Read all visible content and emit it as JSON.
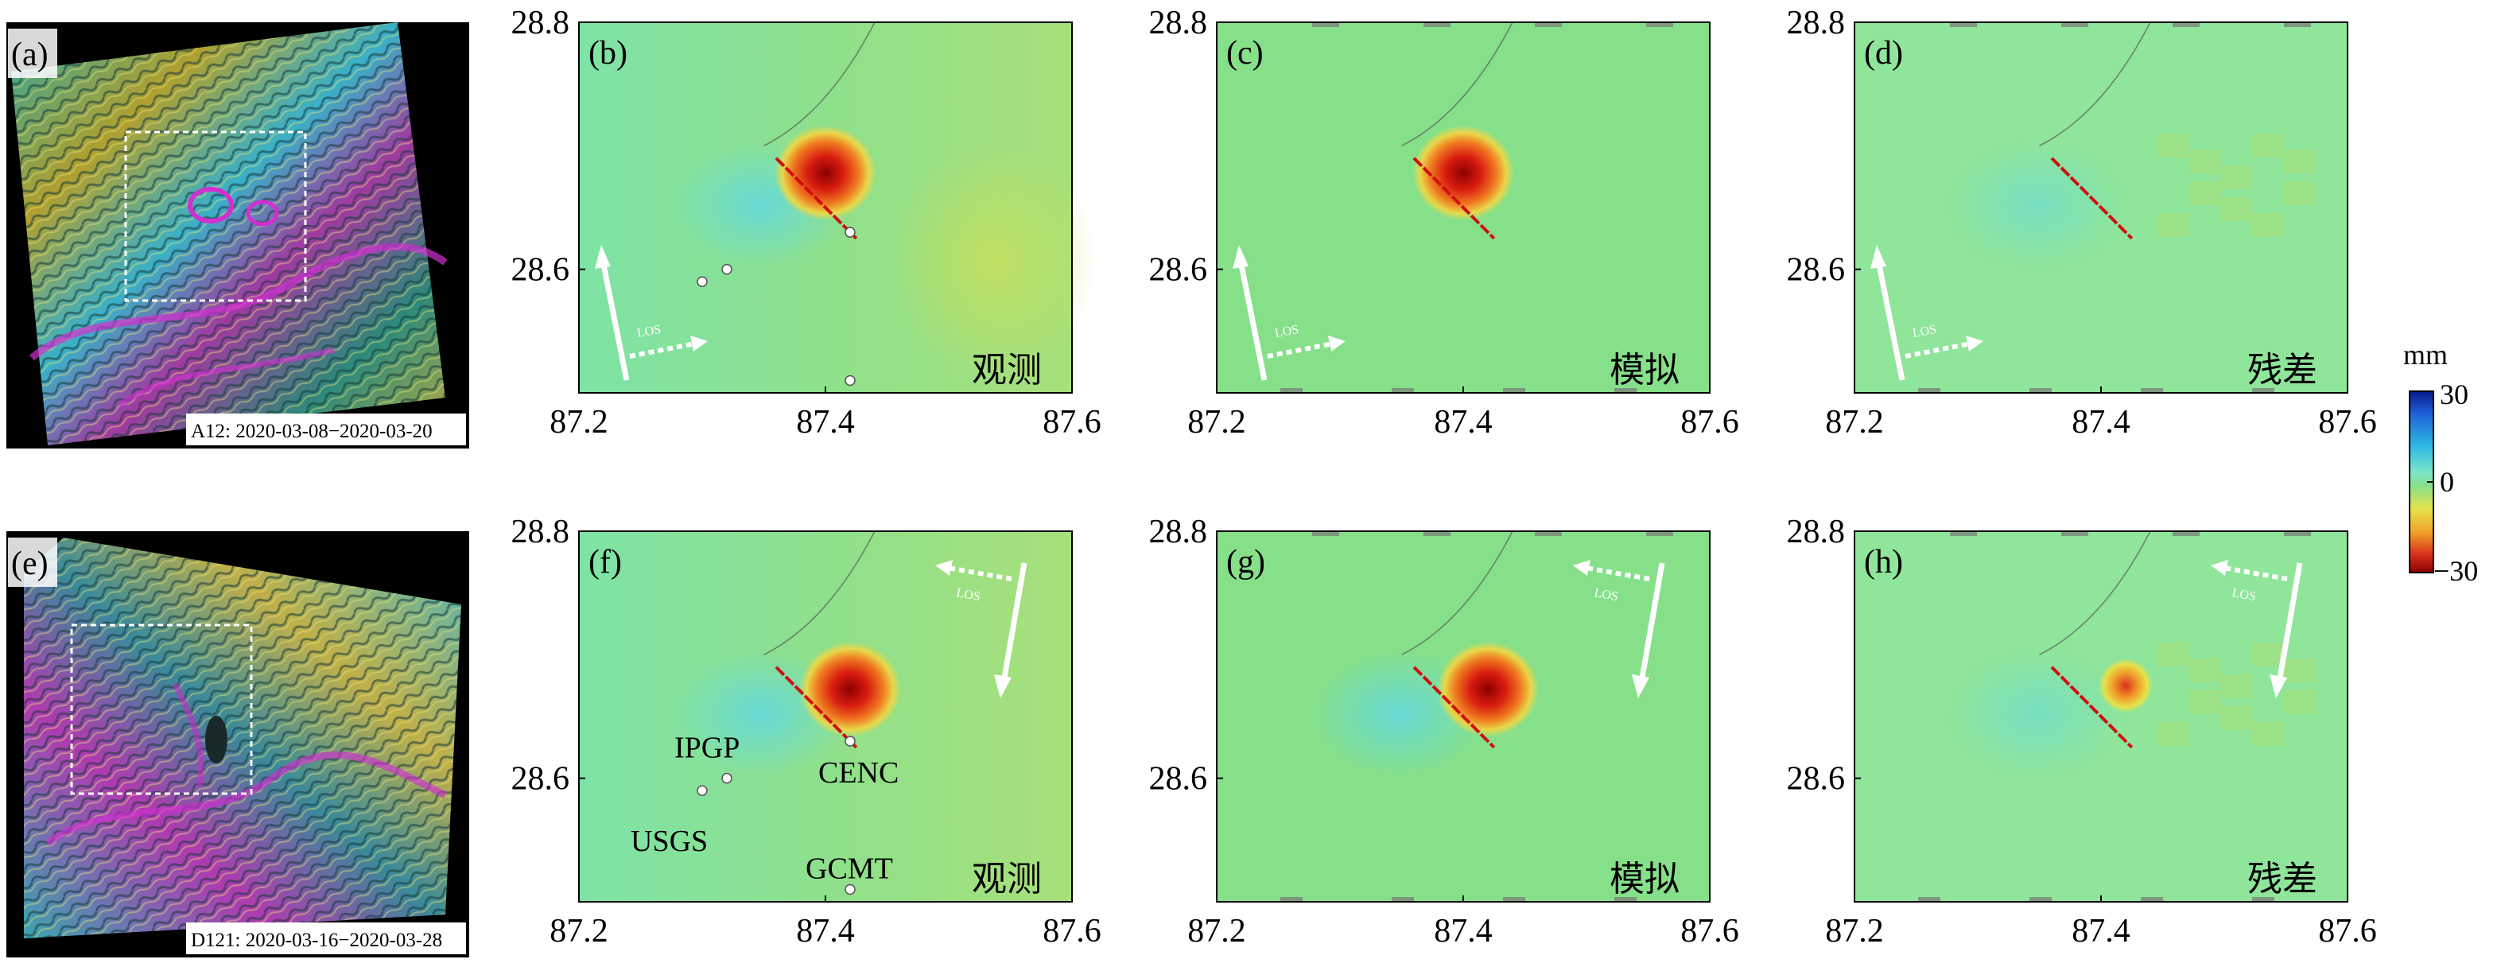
{
  "panels": [
    {
      "label": "(a)",
      "caption": "A12: 2020-03-08−2020-03-20"
    },
    {
      "label": "(b)",
      "tag": "观测"
    },
    {
      "label": "(c)",
      "tag": "模拟"
    },
    {
      "label": "(d)",
      "tag": "残差"
    },
    {
      "label": "(e)",
      "caption": "D121: 2020-03-16−2020-03-28"
    },
    {
      "label": "(f)",
      "tag": "观测"
    },
    {
      "label": "(g)",
      "tag": "模拟"
    },
    {
      "label": "(h)",
      "tag": "残差"
    }
  ],
  "axes": {
    "x_ticks": [
      "87.2",
      "87.4",
      "87.6"
    ],
    "y_ticks": [
      "28.8",
      "28.6"
    ],
    "xlim": [
      87.2,
      87.6
    ],
    "ylim": [
      28.5,
      28.8
    ]
  },
  "los_label": "LOS",
  "epicenters": [
    {
      "name": "IPGP",
      "lon": 87.32,
      "lat": 28.6
    },
    {
      "name": "USGS",
      "lon": 87.3,
      "lat": 28.59
    },
    {
      "name": "CENC",
      "lon": 87.42,
      "lat": 28.63
    },
    {
      "name": "GCMT",
      "lon": 87.42,
      "lat": 28.51
    }
  ],
  "colorbar": {
    "unit": "mm",
    "max_label": "30",
    "mid_label": "0",
    "min_label": "−30",
    "colors": [
      "#0a1a8c",
      "#1f5fd6",
      "#2fb7e6",
      "#7be6c8",
      "#86e08a",
      "#e6e24a",
      "#f0a02a",
      "#d8301c",
      "#8c0000"
    ]
  }
}
